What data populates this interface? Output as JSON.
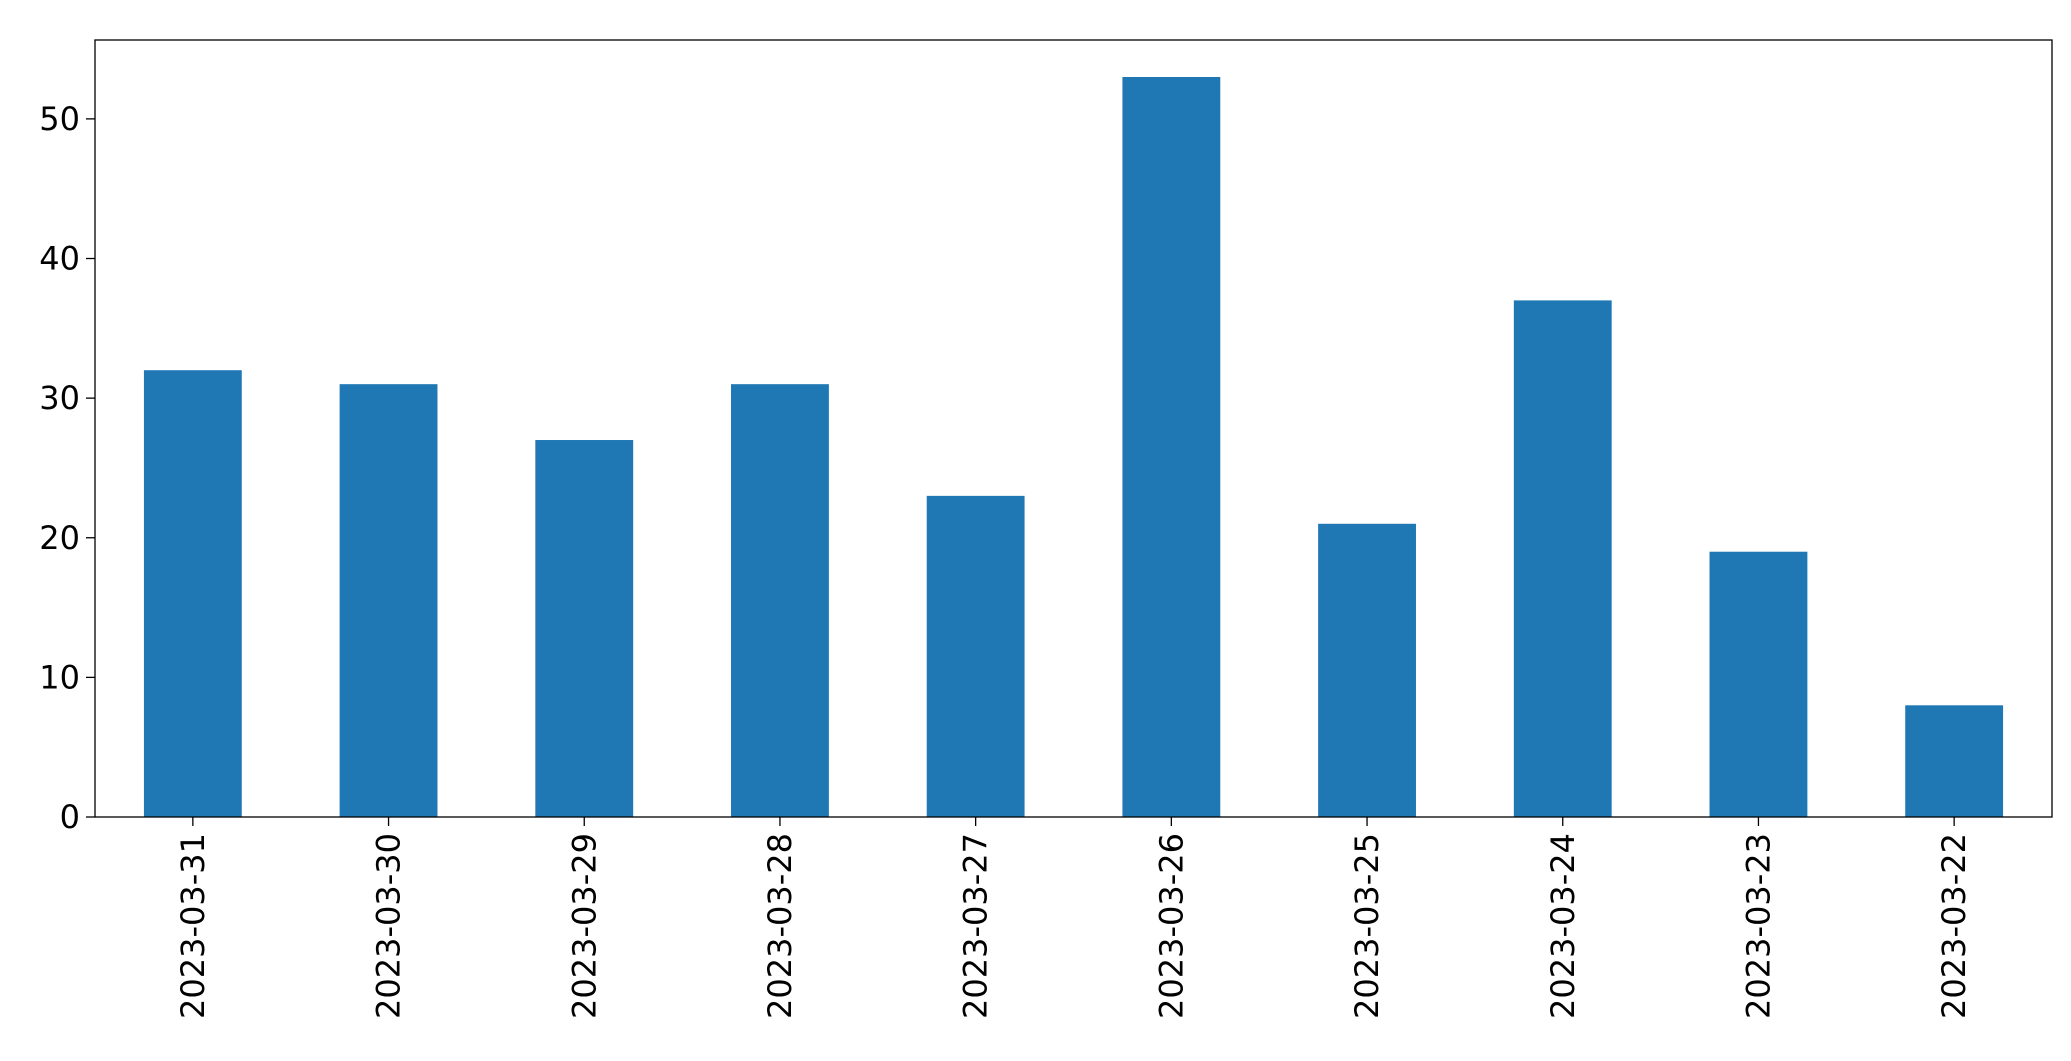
{
  "chart_data": {
    "type": "bar",
    "categories": [
      "2023-03-31",
      "2023-03-30",
      "2023-03-29",
      "2023-03-28",
      "2023-03-27",
      "2023-03-26",
      "2023-03-25",
      "2023-03-24",
      "2023-03-23",
      "2023-03-22"
    ],
    "values": [
      32,
      31,
      27,
      31,
      23,
      53,
      21,
      37,
      19,
      8
    ],
    "color": "#1f77b4",
    "ylim": [
      0,
      55.65
    ],
    "yticks": [
      0,
      10,
      20,
      30,
      40,
      50
    ],
    "grid": false
  }
}
